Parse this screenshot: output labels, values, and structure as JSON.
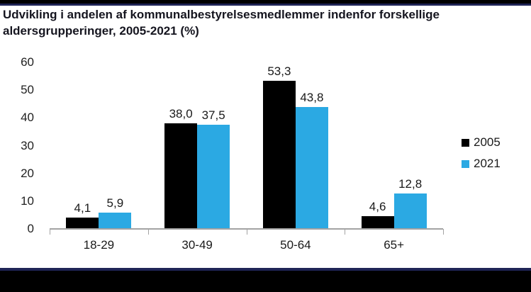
{
  "page": {
    "title": "Udvikling i andelen af kommunalbestyrelsesmedlemmer indenfor forskellige aldersgrupperinger, 2005-2021 (%)"
  },
  "chart_data": {
    "type": "bar",
    "title": "Udvikling i andelen af kommunalbestyrelsesmedlemmer indenfor forskellige aldersgrupperinger, 2005-2021 (%)",
    "categories": [
      "18-29",
      "30-49",
      "50-64",
      "65+"
    ],
    "series": [
      {
        "name": "2005",
        "color": "#000000",
        "values": [
          4.1,
          38.0,
          53.3,
          4.6
        ],
        "value_labels": [
          "4,1",
          "38,0",
          "53,3",
          "4,6"
        ]
      },
      {
        "name": "2021",
        "color": "#2BA9E3",
        "values": [
          5.9,
          37.5,
          43.8,
          12.8
        ],
        "value_labels": [
          "5,9",
          "37,5",
          "43,8",
          "12,8"
        ]
      }
    ],
    "y_ticks": [
      "0",
      "10",
      "20",
      "30",
      "40",
      "50",
      "60"
    ],
    "ylim": [
      0,
      60
    ],
    "xlabel": "",
    "ylabel": "",
    "grid": false,
    "legend_position": "right",
    "decimal_separator": ","
  },
  "colors": {
    "bar_2005": "#000000",
    "bar_2021": "#2BA9E3",
    "navy_stripe": "#1F2456",
    "top_black": "#000000",
    "axis_gray": "#A3A3A3",
    "title_color": "#15151F"
  }
}
